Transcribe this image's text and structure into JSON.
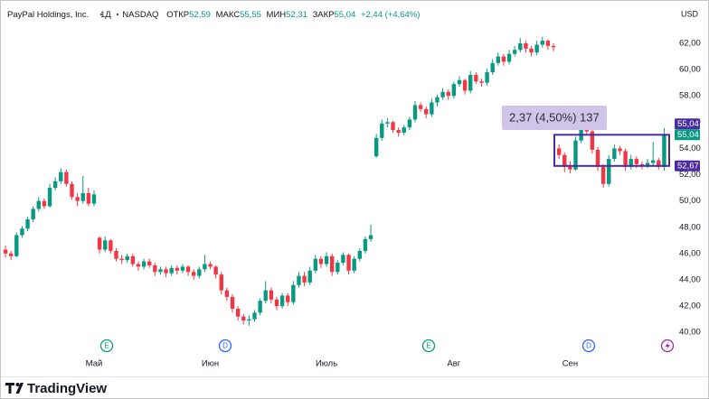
{
  "chart_data": {
    "type": "candlestick",
    "title": "PayPal Holdings, Inc.",
    "interval": "1Д",
    "exchange": "NASDAQ",
    "ohlc_legend": [
      {
        "label": "ОТКР",
        "value": "52,59"
      },
      {
        "label": "МАКС",
        "value": "55,55"
      },
      {
        "label": "МИН",
        "value": "52,31"
      },
      {
        "label": "ЗАКР",
        "value": "55,04"
      }
    ],
    "change": "+2,44 (+4,64%)",
    "currency": "USD",
    "categories": [
      null,
      null,
      null,
      null,
      null,
      null,
      null,
      null,
      null,
      null,
      null,
      null,
      null,
      null,
      null,
      null,
      "Май",
      null,
      null,
      null,
      null,
      null,
      null,
      null,
      null,
      null,
      null,
      null,
      null,
      null,
      null,
      null,
      null,
      null,
      null,
      null,
      null,
      "Июн",
      null,
      null,
      null,
      null,
      null,
      null,
      null,
      null,
      null,
      null,
      null,
      null,
      null,
      null,
      null,
      null,
      null,
      null,
      null,
      null,
      "Июль",
      null,
      null,
      null,
      null,
      null,
      null,
      null,
      null,
      null,
      null,
      null,
      null,
      null,
      null,
      null,
      null,
      null,
      null,
      null,
      null,
      null,
      null,
      "Авг",
      null,
      null,
      null,
      null,
      null,
      null,
      null,
      null,
      null,
      null,
      null,
      null,
      null,
      null,
      null,
      null,
      null,
      null,
      null,
      null,
      "Сен",
      null,
      null,
      null,
      null,
      null,
      null,
      null,
      null,
      null,
      null,
      null,
      null,
      null,
      null,
      null,
      null,
      null
    ],
    "open": [
      46.3,
      46.0,
      45.8,
      47.4,
      47.9,
      48.6,
      49.4,
      50.0,
      49.6,
      51.0,
      51.5,
      52.2,
      51.3,
      50.3,
      50.0,
      50.6,
      49.8,
      47.2,
      46.3,
      47.0,
      46.2,
      45.6,
      45.5,
      45.8,
      45.2,
      45.0,
      45.4,
      45.1,
      44.6,
      44.8,
      44.5,
      44.9,
      44.7,
      45.0,
      44.6,
      44.3,
      44.8,
      45.2,
      45.0,
      44.4,
      43.2,
      42.7,
      41.8,
      41.2,
      40.9,
      41.0,
      41.5,
      42.4,
      43.2,
      42.5,
      42.0,
      42.8,
      42.3,
      43.6,
      44.3,
      43.8,
      44.7,
      45.6,
      45.2,
      45.8,
      44.6,
      45.3,
      45.9,
      44.7,
      45.6,
      46.2,
      47.1,
      53.4,
      54.8,
      55.9,
      56.0,
      55.4,
      55.2,
      55.6,
      56.2,
      57.3,
      57.0,
      56.6,
      57.5,
      57.9,
      58.3,
      58.0,
      58.9,
      59.2,
      58.4,
      59.6,
      59.1,
      59.0,
      59.8,
      60.5,
      61.0,
      60.6,
      61.2,
      61.5,
      62.0,
      61.6,
      61.3,
      61.9,
      62.2,
      61.8,
      54.0,
      53.5,
      52.6,
      52.4,
      54.6,
      56.2,
      55.3,
      53.9,
      52.6,
      51.3,
      53.2,
      54.0,
      53.8,
      52.6,
      53.2,
      52.8,
      52.7,
      52.9,
      53.1,
      52.59
    ],
    "high": [
      46.6,
      46.2,
      47.6,
      48.1,
      48.8,
      49.6,
      50.3,
      50.2,
      51.3,
      51.8,
      52.5,
      52.4,
      51.5,
      50.6,
      51.9,
      51.0,
      50.8,
      47.3,
      47.3,
      47.1,
      46.4,
      45.9,
      46.0,
      46.0,
      45.4,
      45.6,
      45.6,
      45.3,
      45.0,
      45.0,
      45.1,
      45.1,
      45.2,
      45.1,
      44.8,
      45.0,
      45.9,
      45.4,
      45.1,
      44.6,
      43.4,
      42.9,
      42.0,
      41.4,
      41.3,
      41.7,
      42.6,
      43.9,
      43.4,
      42.7,
      43.0,
      43.0,
      43.9,
      44.6,
      44.6,
      45.0,
      45.9,
      45.8,
      46.1,
      46.0,
      45.5,
      46.1,
      46.0,
      45.8,
      46.4,
      47.3,
      48.2,
      55.1,
      56.2,
      56.3,
      56.1,
      55.6,
      55.8,
      56.4,
      57.6,
      57.5,
      57.2,
      57.8,
      58.1,
      58.6,
      58.5,
      59.1,
      59.5,
      59.3,
      59.9,
      59.8,
      59.3,
      60.1,
      60.8,
      61.3,
      61.2,
      61.5,
      61.8,
      62.4,
      62.2,
      61.8,
      62.2,
      62.5,
      62.3,
      62.0,
      54.3,
      53.7,
      53.0,
      54.9,
      57.0,
      56.4,
      55.5,
      54.1,
      52.8,
      53.5,
      54.3,
      54.2,
      54.0,
      53.5,
      53.4,
      53.0,
      53.2,
      54.5,
      53.3,
      55.55
    ],
    "low": [
      45.7,
      45.5,
      45.7,
      47.2,
      47.7,
      48.4,
      49.2,
      49.4,
      49.5,
      50.8,
      51.3,
      51.1,
      50.1,
      49.6,
      49.8,
      49.6,
      49.6,
      46.0,
      46.1,
      46.0,
      45.4,
      45.2,
      45.3,
      45.0,
      44.7,
      44.8,
      44.9,
      44.3,
      44.4,
      44.2,
      44.3,
      44.4,
      44.5,
      44.3,
      44.0,
      44.1,
      44.6,
      44.8,
      44.1,
      42.9,
      42.4,
      41.5,
      40.9,
      40.6,
      40.5,
      40.8,
      41.3,
      42.2,
      42.2,
      41.7,
      41.8,
      42.0,
      42.1,
      43.4,
      43.5,
      43.6,
      44.5,
      44.9,
      45.0,
      44.3,
      44.4,
      45.1,
      44.4,
      44.5,
      45.4,
      46.0,
      46.9,
      53.3,
      54.6,
      55.6,
      55.2,
      54.9,
      55.0,
      55.4,
      56.0,
      56.8,
      56.3,
      56.4,
      57.2,
      57.7,
      57.7,
      57.8,
      58.7,
      58.1,
      58.2,
      58.9,
      58.7,
      58.8,
      59.6,
      60.3,
      60.3,
      60.4,
      61.0,
      61.3,
      61.3,
      61.0,
      61.1,
      61.7,
      61.5,
      61.4,
      53.2,
      52.2,
      52.1,
      52.3,
      54.4,
      55.0,
      53.6,
      52.3,
      51.0,
      51.1,
      53.0,
      53.5,
      52.3,
      52.4,
      52.5,
      52.4,
      52.5,
      52.7,
      52.4,
      52.31
    ],
    "close": [
      46.0,
      45.8,
      47.4,
      47.9,
      48.6,
      49.4,
      50.0,
      49.6,
      51.0,
      51.5,
      52.2,
      51.3,
      50.3,
      50.0,
      50.6,
      49.8,
      50.5,
      46.3,
      47.0,
      46.2,
      45.6,
      45.5,
      45.8,
      45.2,
      45.0,
      45.4,
      45.1,
      44.6,
      44.8,
      44.5,
      44.9,
      44.7,
      45.0,
      44.6,
      44.3,
      44.8,
      45.2,
      45.0,
      44.4,
      43.2,
      42.7,
      41.8,
      41.2,
      40.9,
      41.0,
      41.5,
      42.4,
      43.2,
      42.5,
      42.0,
      42.8,
      42.3,
      43.6,
      44.3,
      43.8,
      44.7,
      45.6,
      45.2,
      45.8,
      44.6,
      45.3,
      45.9,
      44.7,
      45.6,
      46.2,
      47.1,
      47.4,
      54.8,
      55.9,
      56.0,
      55.4,
      55.2,
      55.6,
      56.2,
      57.3,
      57.0,
      56.6,
      57.5,
      57.9,
      58.3,
      58.0,
      58.9,
      59.2,
      58.4,
      59.6,
      59.1,
      59.0,
      59.8,
      60.5,
      61.0,
      60.6,
      61.2,
      61.5,
      62.0,
      61.6,
      61.3,
      61.9,
      62.2,
      61.8,
      61.7,
      53.5,
      52.6,
      52.4,
      54.6,
      56.2,
      55.3,
      53.9,
      52.6,
      51.3,
      53.2,
      54.0,
      53.8,
      52.6,
      53.2,
      52.8,
      52.7,
      52.9,
      53.1,
      52.6,
      55.04
    ],
    "up_color": "#089981",
    "down_color": "#f23645",
    "ylim": [
      38.5,
      65.3
    ],
    "yticks": [
      {
        "value": 40,
        "label": "40,00"
      },
      {
        "value": 42,
        "label": "42,00"
      },
      {
        "value": 44,
        "label": "44,00"
      },
      {
        "value": 46,
        "label": "46,00"
      },
      {
        "value": 48,
        "label": "48,00"
      },
      {
        "value": 50,
        "label": "50,00"
      },
      {
        "value": 52,
        "label": "52,00"
      },
      {
        "value": 54,
        "label": "54,00"
      },
      {
        "value": 56,
        "label": "56,00"
      },
      {
        "value": 58,
        "label": "58,00"
      },
      {
        "value": 60,
        "label": "60,00"
      },
      {
        "value": 62,
        "label": "62,00"
      }
    ],
    "grid": false,
    "last_price": {
      "value": 55.04,
      "label": "55,04"
    },
    "range_box": {
      "top": {
        "value": 55.04,
        "label": "55,04"
      },
      "bottom": {
        "value": 52.67,
        "label": "52,67"
      },
      "text": "2,37 (4,50%) 137",
      "color": "#4a2ca0"
    },
    "events": [
      "E",
      "D",
      "E",
      "D"
    ],
    "branding": "TradingView"
  }
}
